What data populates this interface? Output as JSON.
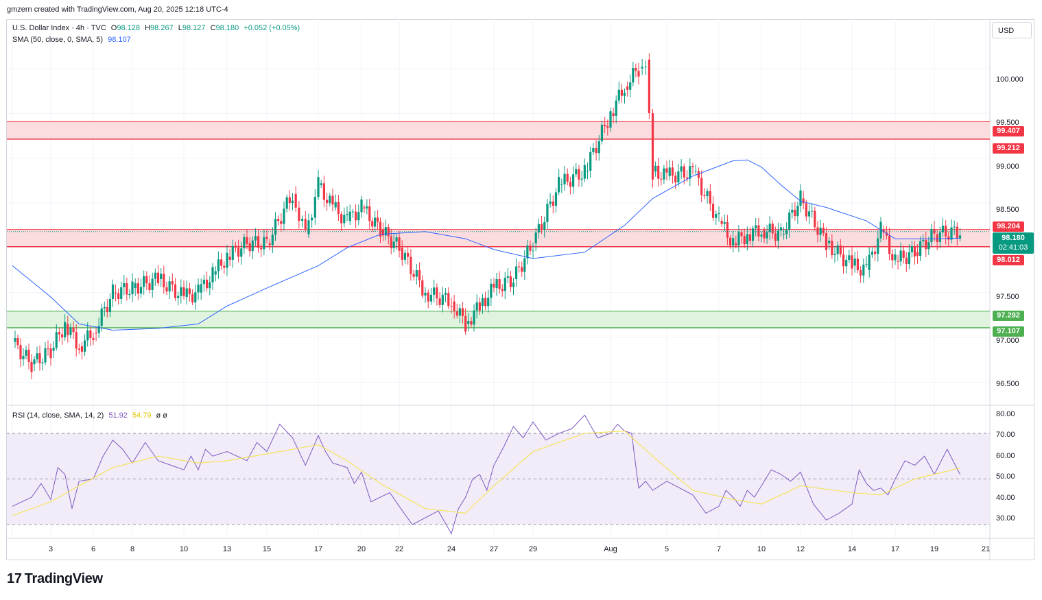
{
  "credit": "gmzern created with TradingView.com, Aug 20, 2025 12:18 UTC-4",
  "legend": {
    "symbol": "U.S. Dollar Index · 4h · TVC",
    "o_label": "O",
    "o": "98.128",
    "h_label": "H",
    "h": "98.267",
    "l_label": "L",
    "l": "98.127",
    "c_label": "C",
    "c": "98.180",
    "change": "+0.052 (+0.05%)",
    "sma_label": "SMA (50, close, 0, SMA, 5)",
    "sma_value": "98.107",
    "rsi_label": "RSI (14, close, SMA, 14, 2)",
    "rsi_value": "51.92",
    "rsi_sma_value": "54.79",
    "rsi_extra": "ø ø"
  },
  "currency_button": "USD",
  "logo_text": "TradingView",
  "logo_mark": "17",
  "colors": {
    "up": "#089981",
    "down": "#f23645",
    "sma": "#2962ff",
    "rsi": "#7e57c2",
    "rsi_sma": "#f7e35a",
    "resistance_zone": "#fbdde0",
    "support_zone": "#dff3df"
  },
  "price_axis": [
    "100.000",
    "99.500",
    "99.000",
    "98.500",
    "97.500",
    "97.000",
    "96.500"
  ],
  "rsi_axis": [
    "80.00",
    "70.00",
    "60.00",
    "50.00",
    "40.00",
    "30.00"
  ],
  "time_axis": [
    "3",
    "6",
    "8",
    "10",
    "13",
    "15",
    "17",
    "20",
    "22",
    "24",
    "27",
    "29",
    "Aug",
    "5",
    "7",
    "10",
    "12",
    "14",
    "17",
    "19",
    "21"
  ],
  "level_tags": {
    "r_top": "99.407",
    "r_bottom": "99.212",
    "s_mid_top": "98.204",
    "s_mid_bottom": "98.012",
    "s_low_top": "97.292",
    "s_low_bottom": "97.107"
  },
  "current": {
    "price": "98.180",
    "countdown": "02:41:03"
  },
  "chart_data": [
    {
      "type": "candlestick",
      "title": "U.S. Dollar Index · 4h · TVC",
      "x_range": [
        "Jul 1 2025",
        "Aug 21 2025"
      ],
      "ylim": [
        96.25,
        100.55
      ],
      "zones": [
        {
          "from": 99.212,
          "to": 99.407,
          "kind": "resistance"
        },
        {
          "from": 98.012,
          "to": 98.204,
          "kind": "resistance"
        },
        {
          "from": 97.107,
          "to": 97.292,
          "kind": "support"
        }
      ],
      "close_path": [
        [
          "Jul 1",
          96.95
        ],
        [
          "Jul 2",
          96.7
        ],
        [
          "Jul 3",
          96.85
        ],
        [
          "Jul 4",
          97.15
        ],
        [
          "Jul 5",
          96.9
        ],
        [
          "Jul 6",
          97.05
        ],
        [
          "Jul 7",
          97.5
        ],
        [
          "Jul 8",
          97.55
        ],
        [
          "Jul 9",
          97.65
        ],
        [
          "Jul 10",
          97.45
        ],
        [
          "Jul 11",
          97.5
        ],
        [
          "Jul 12",
          97.7
        ],
        [
          "Jul 13",
          97.9
        ],
        [
          "Jul 14",
          98.05
        ],
        [
          "Jul 15",
          98.05
        ],
        [
          "Jul 16",
          98.6
        ],
        [
          "Jul 16.5",
          98.15
        ],
        [
          "Jul 17",
          98.7
        ],
        [
          "Jul 18",
          98.45
        ],
        [
          "Jul 19",
          98.3
        ],
        [
          "Jul 20",
          98.45
        ],
        [
          "Jul 21",
          98.2
        ],
        [
          "Jul 22",
          98.0
        ],
        [
          "Jul 23",
          97.5
        ],
        [
          "Jul 24",
          97.4
        ],
        [
          "Jul 25",
          97.15
        ],
        [
          "Jul 26",
          97.35
        ],
        [
          "Jul 27",
          97.55
        ],
        [
          "Jul 28",
          97.65
        ],
        [
          "Jul 29",
          98.05
        ],
        [
          "Jul 30",
          98.7
        ],
        [
          "Jul 31",
          98.85
        ],
        [
          "Aug 1",
          99.5
        ],
        [
          "Aug 2",
          99.8
        ],
        [
          "Aug 3",
          100.0
        ],
        [
          "Aug 3.5",
          100.1
        ],
        [
          "Aug 4",
          98.85
        ],
        [
          "Aug 5",
          98.8
        ],
        [
          "Aug 6",
          98.85
        ],
        [
          "Aug 7",
          98.3
        ],
        [
          "Aug 8",
          98.05
        ],
        [
          "Aug 9",
          98.15
        ],
        [
          "Aug 10",
          98.2
        ],
        [
          "Aug 11",
          98.15
        ],
        [
          "Aug 12",
          98.55
        ],
        [
          "Aug 13",
          98.05
        ],
        [
          "Aug 14",
          97.8
        ],
        [
          "Aug 15",
          97.75
        ],
        [
          "Aug 16",
          98.2
        ],
        [
          "Aug 17",
          97.85
        ],
        [
          "Aug 18",
          97.95
        ],
        [
          "Aug 19",
          98.15
        ],
        [
          "Aug 20",
          98.18
        ]
      ],
      "sma50_path": [
        [
          "Jul 1",
          97.8
        ],
        [
          "Jul 3",
          97.45
        ],
        [
          "Jul 5",
          97.15
        ],
        [
          "Jul 7",
          97.08
        ],
        [
          "Jul 9",
          97.1
        ],
        [
          "Jul 11",
          97.15
        ],
        [
          "Jul 13",
          97.35
        ],
        [
          "Jul 15",
          97.55
        ],
        [
          "Jul 17",
          97.8
        ],
        [
          "Jul 19",
          98.0
        ],
        [
          "Jul 21",
          98.15
        ],
        [
          "Jul 23",
          98.18
        ],
        [
          "Jul 25",
          98.1
        ],
        [
          "Jul 27",
          97.98
        ],
        [
          "Jul 29",
          97.88
        ],
        [
          "Jul 31",
          97.95
        ],
        [
          "Aug 2",
          98.25
        ],
        [
          "Aug 4",
          98.55
        ],
        [
          "Aug 6",
          98.8
        ],
        [
          "Aug 8",
          98.97
        ],
        [
          "Aug 9",
          98.98
        ],
        [
          "Aug 10",
          98.9
        ],
        [
          "Aug 11",
          98.7
        ],
        [
          "Aug 12",
          98.52
        ],
        [
          "Aug 13",
          98.45
        ],
        [
          "Aug 15",
          98.3
        ],
        [
          "Aug 17",
          98.1
        ],
        [
          "Aug 19",
          98.1
        ],
        [
          "Aug 20",
          98.107
        ]
      ]
    },
    {
      "type": "line",
      "title": "RSI (14, close, SMA, 14, 2)",
      "ylim": [
        24,
        82
      ],
      "bands": [
        30,
        50,
        70
      ],
      "series": [
        {
          "name": "RSI",
          "values": [
            [
              "Jul 1",
              38
            ],
            [
              "Jul 2",
              42
            ],
            [
              "Jul 2.5",
              48
            ],
            [
              "Jul 3",
              41
            ],
            [
              "Jul 3.5",
              55
            ],
            [
              "Jul 4",
              52
            ],
            [
              "Jul 4.5",
              37
            ],
            [
              "Jul 5",
              49
            ],
            [
              "Jul 6",
              50
            ],
            [
              "Jul 6.5",
              60
            ],
            [
              "Jul 7",
              67
            ],
            [
              "Jul 7.5",
              63
            ],
            [
              "Jul 8",
              57
            ],
            [
              "Jul 8.5",
              66
            ],
            [
              "Jul 9",
              58
            ],
            [
              "Jul 10",
              54
            ],
            [
              "Jul 10.5",
              60
            ],
            [
              "Jul 11",
              54
            ],
            [
              "Jul 11.5",
              63
            ],
            [
              "Jul 12",
              60
            ],
            [
              "Jul 13",
              62
            ],
            [
              "Jul 14",
              58
            ],
            [
              "Jul 14.5",
              66
            ],
            [
              "Jul 15",
              62
            ],
            [
              "Jul 15.5",
              74
            ],
            [
              "Jul 16",
              68
            ],
            [
              "Jul 16.5",
              56
            ],
            [
              "Jul 17",
              69
            ],
            [
              "Jul 17.5",
              62
            ],
            [
              "Jul 18",
              57
            ],
            [
              "Jul 19",
              55
            ],
            [
              "Jul 19.5",
              48
            ],
            [
              "Jul 20",
              53
            ],
            [
              "Jul 20.5",
              40
            ],
            [
              "Jul 21",
              42
            ],
            [
              "Jul 21.5",
              44
            ],
            [
              "Jul 22",
              38
            ],
            [
              "Jul 22.5",
              30
            ],
            [
              "Jul 23",
              33
            ],
            [
              "Jul 23.5",
              36
            ],
            [
              "Jul 24",
              26
            ],
            [
              "Jul 24.5",
              37
            ],
            [
              "Jul 25",
              42
            ],
            [
              "Jul 25.5",
              50
            ],
            [
              "Jul 26",
              52
            ],
            [
              "Jul 26.5",
              45
            ],
            [
              "Jul 27",
              56
            ],
            [
              "Jul 27.5",
              64
            ],
            [
              "Jul 28",
              73
            ],
            [
              "Jul 28.5",
              68
            ],
            [
              "Jul 29",
              75
            ],
            [
              "Jul 29.5",
              67
            ],
            [
              "Jul 30",
              70
            ],
            [
              "Jul 30.5",
              72
            ],
            [
              "Jul 31",
              78
            ],
            [
              "Jul 31.5",
              68
            ],
            [
              "Aug 1",
              70
            ],
            [
              "Aug 1.5",
              74
            ],
            [
              "Aug 2",
              71
            ],
            [
              "Aug 2.5",
              70
            ],
            [
              "Aug 3",
              46
            ],
            [
              "Aug 3.5",
              49
            ],
            [
              "Aug 4",
              45
            ],
            [
              "Aug 5",
              49
            ],
            [
              "Aug 5.5",
              46
            ],
            [
              "Aug 6",
              43
            ],
            [
              "Aug 6.5",
              35
            ],
            [
              "Aug 7",
              38
            ],
            [
              "Aug 7.5",
              45
            ],
            [
              "Aug 8",
              42
            ],
            [
              "Aug 8.5",
              38
            ],
            [
              "Aug 9",
              45
            ],
            [
              "Aug 9.5",
              42
            ],
            [
              "Aug 10",
              47
            ],
            [
              "Aug 10.5",
              54
            ],
            [
              "Aug 11",
              52
            ],
            [
              "Aug 11.5",
              49
            ],
            [
              "Aug 12",
              53
            ],
            [
              "Aug 12.5",
              39
            ],
            [
              "Aug 13",
              32
            ],
            [
              "Aug 13.5",
              35
            ],
            [
              "Aug 14",
              39
            ],
            [
              "Aug 14.5",
              54
            ],
            [
              "Aug 15",
              48
            ],
            [
              "Aug 15.5",
              45
            ],
            [
              "Aug 16",
              46
            ],
            [
              "Aug 16.5",
              43
            ],
            [
              "Aug 17",
              50
            ],
            [
              "Aug 17.5",
              58
            ],
            [
              "Aug 18",
              56
            ],
            [
              "Aug 18.5",
              60
            ],
            [
              "Aug 19",
              52
            ],
            [
              "Aug 19.5",
              63
            ],
            [
              "Aug 20",
              52
            ]
          ]
        },
        {
          "name": "RSI SMA",
          "values": [
            [
              "Jul 1",
              34
            ],
            [
              "Jul 3",
              40
            ],
            [
              "Jul 5",
              47
            ],
            [
              "Jul 7",
              55
            ],
            [
              "Jul 9",
              60
            ],
            [
              "Jul 11",
              57
            ],
            [
              "Jul 13",
              58
            ],
            [
              "Jul 15",
              61
            ],
            [
              "Jul 17",
              65
            ],
            [
              "Jul 19",
              58
            ],
            [
              "Jul 21",
              48
            ],
            [
              "Jul 23",
              37
            ],
            [
              "Jul 25",
              35
            ],
            [
              "Jul 27",
              47
            ],
            [
              "Jul 29",
              62
            ],
            [
              "Jul 31",
              70
            ],
            [
              "Aug 2",
              71
            ],
            [
              "Aug 4",
              60
            ],
            [
              "Aug 6",
              45
            ],
            [
              "Aug 8",
              41
            ],
            [
              "Aug 10",
              39
            ],
            [
              "Aug 12",
              47
            ],
            [
              "Aug 14",
              44
            ],
            [
              "Aug 16",
              43
            ],
            [
              "Aug 18",
              50
            ],
            [
              "Aug 20",
              54.79
            ]
          ]
        }
      ]
    }
  ]
}
